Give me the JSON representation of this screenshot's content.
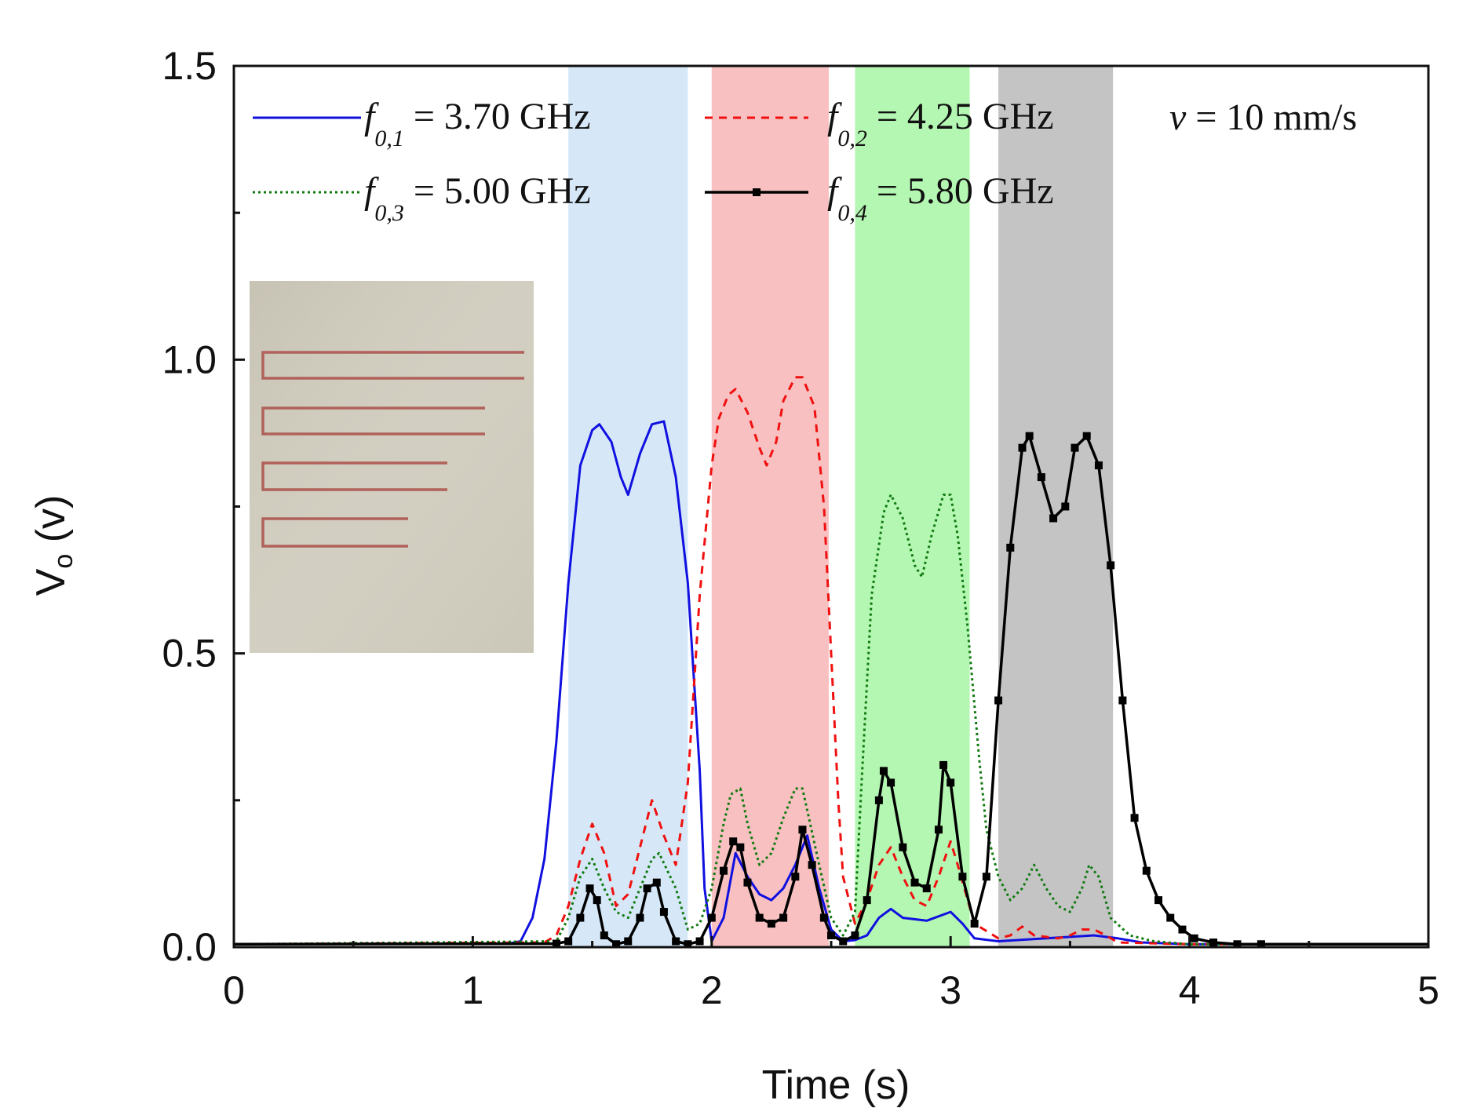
{
  "chart_data": {
    "type": "line",
    "xlabel": "Time (s)",
    "ylabel_main": "V",
    "ylabel_sub": "o",
    "ylabel_unit": " (v)",
    "xlim": [
      0,
      5
    ],
    "ylim": [
      0,
      1.5
    ],
    "x_ticks": [
      "0",
      "1",
      "2",
      "3",
      "4",
      "5"
    ],
    "x_tick_values": [
      0,
      1,
      2,
      3,
      4,
      5
    ],
    "y_ticks": [
      "0.0",
      "0.5",
      "1.0",
      "1.5"
    ],
    "y_tick_values": [
      0,
      0.5,
      1.0,
      1.5
    ],
    "annotation": {
      "var": "v",
      "rest": " = 10 mm/s"
    },
    "inset": {
      "description": "photo of four folded stepped-impedance resonators (fabricated sensor)"
    },
    "bands": [
      {
        "x0": 1.4,
        "x1": 1.9,
        "color": "#d6e8f8"
      },
      {
        "x0": 2.0,
        "x1": 2.49,
        "color": "#f8c0c0"
      },
      {
        "x0": 2.6,
        "x1": 3.08,
        "color": "#b4f7b2"
      },
      {
        "x0": 3.2,
        "x1": 3.68,
        "color": "#c4c4c4"
      }
    ],
    "series": [
      {
        "name": "f0,1 = 3.70 GHz",
        "f": "f",
        "sub": "0,1",
        "value": " = 3.70 GHz",
        "color": "#1010e0",
        "dash": "",
        "marker": false,
        "x": [
          0,
          1.15,
          1.2,
          1.25,
          1.3,
          1.35,
          1.4,
          1.45,
          1.5,
          1.53,
          1.58,
          1.62,
          1.65,
          1.7,
          1.75,
          1.8,
          1.85,
          1.9,
          1.95,
          1.97,
          2.0,
          2.05,
          2.1,
          2.15,
          2.2,
          2.25,
          2.3,
          2.35,
          2.4,
          2.45,
          2.5,
          2.55,
          2.6,
          2.65,
          2.7,
          2.75,
          2.8,
          2.9,
          3.0,
          3.05,
          3.1,
          3.2,
          3.4,
          3.6,
          3.7,
          3.8,
          4.0,
          5.0
        ],
        "y": [
          0.005,
          0.006,
          0.01,
          0.05,
          0.15,
          0.35,
          0.62,
          0.82,
          0.88,
          0.89,
          0.86,
          0.8,
          0.77,
          0.84,
          0.89,
          0.895,
          0.8,
          0.62,
          0.3,
          0.1,
          0.01,
          0.05,
          0.16,
          0.12,
          0.09,
          0.08,
          0.1,
          0.14,
          0.19,
          0.1,
          0.03,
          0.01,
          0.012,
          0.02,
          0.05,
          0.065,
          0.05,
          0.045,
          0.06,
          0.04,
          0.015,
          0.01,
          0.015,
          0.02,
          0.015,
          0.008,
          0.005,
          0.005
        ]
      },
      {
        "name": "f0,2 = 4.25 GHz",
        "f": "f",
        "sub": "0,2",
        "value": " = 4.25 GHz",
        "color": "#f01010",
        "dash": "10,8",
        "marker": false,
        "x": [
          0,
          1.3,
          1.35,
          1.4,
          1.45,
          1.5,
          1.55,
          1.6,
          1.65,
          1.7,
          1.75,
          1.8,
          1.85,
          1.9,
          1.95,
          2.0,
          2.03,
          2.07,
          2.1,
          2.15,
          2.2,
          2.23,
          2.27,
          2.3,
          2.35,
          2.38,
          2.43,
          2.47,
          2.5,
          2.53,
          2.55,
          2.6,
          2.65,
          2.7,
          2.75,
          2.8,
          2.85,
          2.9,
          2.95,
          3.0,
          3.03,
          3.1,
          3.2,
          3.25,
          3.3,
          3.35,
          3.45,
          3.5,
          3.55,
          3.6,
          3.65,
          3.7,
          4.0,
          5.0
        ],
        "y": [
          0.005,
          0.008,
          0.02,
          0.07,
          0.15,
          0.21,
          0.16,
          0.07,
          0.09,
          0.17,
          0.25,
          0.19,
          0.14,
          0.28,
          0.6,
          0.82,
          0.9,
          0.94,
          0.95,
          0.91,
          0.85,
          0.82,
          0.86,
          0.93,
          0.97,
          0.97,
          0.92,
          0.75,
          0.5,
          0.25,
          0.12,
          0.04,
          0.08,
          0.14,
          0.17,
          0.12,
          0.08,
          0.07,
          0.12,
          0.18,
          0.14,
          0.04,
          0.015,
          0.02,
          0.035,
          0.02,
          0.015,
          0.02,
          0.03,
          0.03,
          0.02,
          0.008,
          0.005,
          0.005
        ]
      },
      {
        "name": "f0,3 = 5.00 GHz",
        "f": "f",
        "sub": "0,3",
        "value": " = 5.00 GHz",
        "color": "#107a10",
        "dash": "3,4",
        "marker": false,
        "x": [
          0,
          1.35,
          1.4,
          1.45,
          1.5,
          1.55,
          1.6,
          1.65,
          1.7,
          1.75,
          1.78,
          1.85,
          1.9,
          1.95,
          2.0,
          2.05,
          2.08,
          2.12,
          2.15,
          2.2,
          2.25,
          2.3,
          2.35,
          2.38,
          2.45,
          2.5,
          2.55,
          2.6,
          2.63,
          2.67,
          2.72,
          2.75,
          2.8,
          2.85,
          2.88,
          2.92,
          2.97,
          3.0,
          3.03,
          3.07,
          3.12,
          3.15,
          3.2,
          3.25,
          3.3,
          3.35,
          3.4,
          3.45,
          3.5,
          3.55,
          3.58,
          3.62,
          3.67,
          3.75,
          3.85,
          4.0,
          5.0
        ],
        "y": [
          0.005,
          0.01,
          0.05,
          0.12,
          0.15,
          0.1,
          0.06,
          0.05,
          0.1,
          0.15,
          0.16,
          0.1,
          0.03,
          0.04,
          0.1,
          0.21,
          0.26,
          0.27,
          0.21,
          0.14,
          0.16,
          0.22,
          0.27,
          0.27,
          0.14,
          0.05,
          0.02,
          0.06,
          0.3,
          0.6,
          0.74,
          0.77,
          0.73,
          0.65,
          0.63,
          0.7,
          0.77,
          0.77,
          0.7,
          0.55,
          0.32,
          0.2,
          0.12,
          0.08,
          0.1,
          0.14,
          0.1,
          0.07,
          0.06,
          0.1,
          0.14,
          0.12,
          0.05,
          0.02,
          0.01,
          0.005,
          0.005
        ]
      },
      {
        "name": "f0,4 = 5.80 GHz",
        "f": "f",
        "sub": "0,4",
        "value": " = 5.80 GHz",
        "color": "#000000",
        "dash": "",
        "marker": true,
        "x": [
          0,
          1.35,
          1.4,
          1.45,
          1.49,
          1.52,
          1.55,
          1.6,
          1.65,
          1.7,
          1.73,
          1.77,
          1.8,
          1.85,
          1.9,
          1.95,
          2.0,
          2.05,
          2.09,
          2.12,
          2.15,
          2.2,
          2.25,
          2.3,
          2.35,
          2.38,
          2.42,
          2.47,
          2.5,
          2.55,
          2.6,
          2.65,
          2.7,
          2.72,
          2.75,
          2.8,
          2.85,
          2.9,
          2.95,
          2.97,
          3.0,
          3.05,
          3.1,
          3.15,
          3.2,
          3.25,
          3.3,
          3.33,
          3.38,
          3.43,
          3.48,
          3.52,
          3.57,
          3.62,
          3.67,
          3.72,
          3.77,
          3.82,
          3.87,
          3.92,
          3.97,
          4.02,
          4.1,
          4.2,
          4.3,
          4.5,
          5.0
        ],
        "y": [
          0.005,
          0.006,
          0.01,
          0.05,
          0.1,
          0.08,
          0.02,
          0.005,
          0.01,
          0.05,
          0.1,
          0.11,
          0.06,
          0.01,
          0.005,
          0.01,
          0.05,
          0.13,
          0.18,
          0.17,
          0.11,
          0.05,
          0.04,
          0.05,
          0.12,
          0.2,
          0.14,
          0.05,
          0.02,
          0.01,
          0.02,
          0.08,
          0.25,
          0.3,
          0.28,
          0.17,
          0.11,
          0.1,
          0.2,
          0.31,
          0.28,
          0.12,
          0.04,
          0.12,
          0.42,
          0.68,
          0.85,
          0.87,
          0.8,
          0.73,
          0.75,
          0.85,
          0.87,
          0.82,
          0.65,
          0.42,
          0.22,
          0.13,
          0.08,
          0.05,
          0.03,
          0.015,
          0.008,
          0.005,
          0.005,
          0.005,
          0.005
        ]
      }
    ]
  }
}
